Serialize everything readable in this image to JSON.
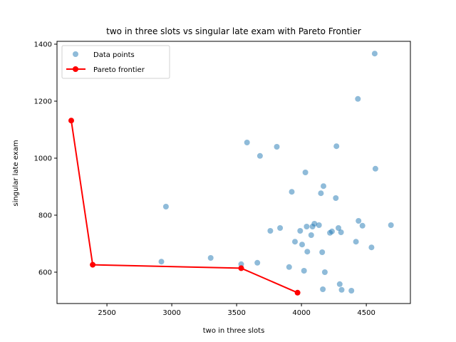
{
  "colors": {
    "scatter": "#1f77b4",
    "frontier": "#ff0000"
  },
  "chart_data": {
    "type": "scatter",
    "title": "two in three slots vs singular late exam with Pareto Frontier",
    "xlabel": "two in three slots",
    "ylabel": "singular late exam",
    "xlim": [
      2115,
      4840
    ],
    "ylim": [
      490,
      1410
    ],
    "xticks": [
      2500,
      3000,
      3500,
      4000,
      4500
    ],
    "yticks": [
      600,
      800,
      1000,
      1200,
      1400
    ],
    "legend": {
      "position": "top-left",
      "entries": [
        "Data points",
        "Pareto frontier"
      ]
    },
    "series": [
      {
        "name": "Data points",
        "type": "scatter",
        "points": [
          [
            2920,
            637
          ],
          [
            2955,
            830
          ],
          [
            3300,
            650
          ],
          [
            3535,
            628
          ],
          [
            3580,
            1055
          ],
          [
            3660,
            633
          ],
          [
            3680,
            1008
          ],
          [
            3760,
            745
          ],
          [
            3810,
            1040
          ],
          [
            3835,
            755
          ],
          [
            3905,
            618
          ],
          [
            3925,
            882
          ],
          [
            3950,
            707
          ],
          [
            3990,
            745
          ],
          [
            4005,
            697
          ],
          [
            4020,
            605
          ],
          [
            4030,
            950
          ],
          [
            4040,
            760
          ],
          [
            4045,
            672
          ],
          [
            4075,
            730
          ],
          [
            4085,
            760
          ],
          [
            4100,
            770
          ],
          [
            4135,
            765
          ],
          [
            4150,
            877
          ],
          [
            4160,
            670
          ],
          [
            4165,
            540
          ],
          [
            4170,
            902
          ],
          [
            4180,
            600
          ],
          [
            4220,
            738
          ],
          [
            4235,
            743
          ],
          [
            4265,
            860
          ],
          [
            4270,
            1042
          ],
          [
            4285,
            755
          ],
          [
            4295,
            558
          ],
          [
            4305,
            740
          ],
          [
            4310,
            538
          ],
          [
            4385,
            535
          ],
          [
            4420,
            707
          ],
          [
            4435,
            1208
          ],
          [
            4440,
            780
          ],
          [
            4470,
            763
          ],
          [
            4540,
            687
          ],
          [
            4565,
            1367
          ],
          [
            4570,
            963
          ],
          [
            4690,
            765
          ]
        ]
      },
      {
        "name": "Pareto frontier",
        "type": "line",
        "points": [
          [
            2225,
            1132
          ],
          [
            2390,
            626
          ],
          [
            3535,
            614
          ],
          [
            3970,
            528
          ]
        ]
      }
    ]
  }
}
